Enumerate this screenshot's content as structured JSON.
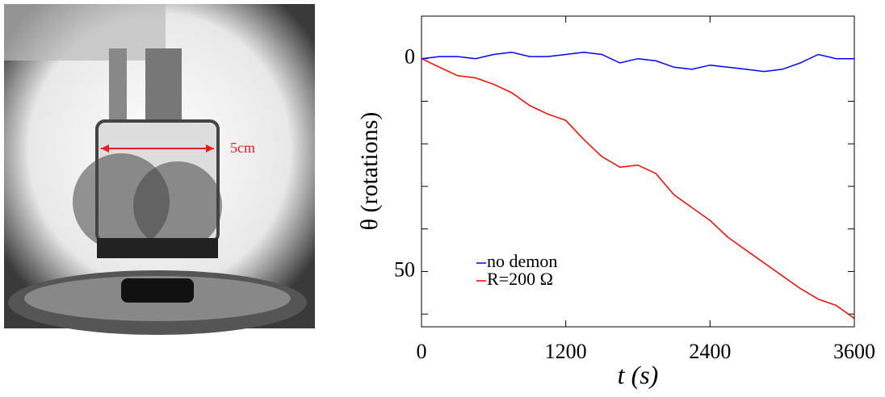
{
  "chart_data": {
    "type": "line",
    "annotation": "5cm",
    "xlabel": "t (s)",
    "ylabel": "θ (rotations)",
    "x": [
      0,
      150,
      300,
      450,
      600,
      750,
      900,
      1050,
      1200,
      1350,
      1500,
      1650,
      1800,
      1950,
      2100,
      2250,
      2400,
      2550,
      2700,
      2850,
      3000,
      3150,
      3300,
      3450,
      3600
    ],
    "series": [
      {
        "name": "no demon",
        "color": "#0000ff",
        "values": [
          0,
          -0.5,
          -0.5,
          0,
          -1,
          -1.5,
          -0.5,
          -0.5,
          -1,
          -1.5,
          -1,
          1,
          0,
          0.5,
          2,
          2.5,
          1.5,
          2,
          2.5,
          3,
          2.5,
          1,
          -1,
          0,
          0
        ]
      },
      {
        "name": "R=200 Ω",
        "color": "#ff0000",
        "values": [
          0,
          2,
          4,
          4.5,
          6,
          8,
          11,
          13,
          14.5,
          19,
          23,
          25.5,
          25,
          27,
          32,
          35,
          38,
          42,
          45,
          48,
          51,
          54,
          56.5,
          58,
          61
        ]
      }
    ],
    "xlim": [
      0,
      3600
    ],
    "xticks": [
      0,
      1200,
      2400,
      3600
    ],
    "ylim": [
      -10,
      63
    ],
    "yticks": [
      0,
      50
    ],
    "yminorticks": [
      10,
      20,
      30,
      40,
      60
    ],
    "y_inverted": true,
    "legend": "lower left"
  }
}
